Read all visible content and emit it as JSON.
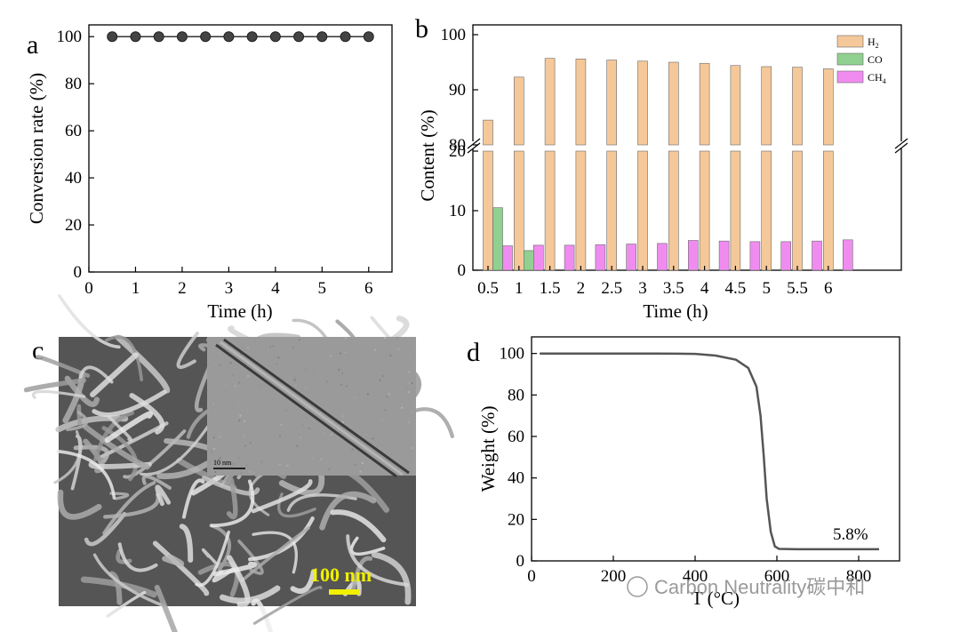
{
  "panels": {
    "a": {
      "letter": "a"
    },
    "b": {
      "letter": "b"
    },
    "c": {
      "letter": "c",
      "scalebar_main": "100 nm",
      "scalebar_inset": "10 nm"
    },
    "d": {
      "letter": "d"
    }
  },
  "watermark": "Carbon Neutrality碳中和",
  "colors": {
    "h2": "#f5c89a",
    "co": "#90d090",
    "ch4": "#f08cf0",
    "line": "#555555",
    "scalebar": "#f0f000"
  },
  "chart_data": [
    {
      "type": "scatter",
      "x": [
        0.5,
        1,
        1.5,
        2,
        2.5,
        3,
        3.5,
        4,
        4.5,
        5,
        5.5,
        6
      ],
      "y": [
        100,
        100,
        100,
        100,
        100,
        100,
        100,
        100,
        100,
        100,
        100,
        100
      ],
      "xlabel": "Time (h)",
      "ylabel": "Conversion rate (%)",
      "xlim": [
        0,
        6.5
      ],
      "ylim": [
        0,
        105
      ],
      "xticks": [
        "0",
        "1",
        "2",
        "3",
        "4",
        "5",
        "6"
      ],
      "yticks": [
        "0",
        "20",
        "40",
        "60",
        "80",
        "100"
      ]
    },
    {
      "type": "bar",
      "categories": [
        "0.5",
        "1",
        "1.5",
        "2",
        "2.5",
        "3",
        "3.5",
        "4",
        "4.5",
        "5",
        "5.5",
        "6"
      ],
      "series": [
        {
          "name": "H2",
          "values": [
            84.5,
            92.3,
            95.7,
            95.6,
            95.4,
            95.2,
            95.0,
            94.8,
            94.4,
            94.2,
            94.1,
            93.8
          ]
        },
        {
          "name": "CO",
          "values": [
            10.5,
            3.3,
            null,
            null,
            null,
            null,
            null,
            null,
            null,
            null,
            null,
            null
          ]
        },
        {
          "name": "CH4",
          "values": [
            4.1,
            4.2,
            4.2,
            4.3,
            4.4,
            4.5,
            5.0,
            4.9,
            4.8,
            4.8,
            4.9,
            5.1
          ]
        }
      ],
      "legend": [
        {
          "label": "H",
          "sub": "2"
        },
        {
          "label": "CO",
          "sub": ""
        },
        {
          "label": "CH",
          "sub": "4"
        }
      ],
      "xlabel": "Time (h)",
      "ylabel": "Content (%)",
      "axis_break": {
        "lower": [
          0,
          20
        ],
        "upper": [
          80,
          100
        ]
      },
      "yticks_lower": [
        "0",
        "10",
        "20"
      ],
      "yticks_upper": [
        "80",
        "90",
        "100"
      ],
      "legend_position": "top-right"
    },
    {
      "type": "line",
      "points": [
        [
          20,
          100
        ],
        [
          300,
          100
        ],
        [
          400,
          99.8
        ],
        [
          450,
          99
        ],
        [
          500,
          97
        ],
        [
          530,
          93
        ],
        [
          550,
          84
        ],
        [
          560,
          70
        ],
        [
          568,
          50
        ],
        [
          575,
          30
        ],
        [
          585,
          14
        ],
        [
          595,
          7
        ],
        [
          605,
          5.8
        ],
        [
          650,
          5.6
        ],
        [
          700,
          5.6
        ],
        [
          850,
          5.6
        ]
      ],
      "xlabel": "T (°C)",
      "ylabel": "Weight (%)",
      "xlim": [
        0,
        900
      ],
      "ylim": [
        0,
        108
      ],
      "xticks": [
        "0",
        "200",
        "400",
        "600",
        "800"
      ],
      "yticks": [
        "0",
        "20",
        "40",
        "60",
        "80",
        "100"
      ],
      "annotation": "5.8%"
    }
  ]
}
